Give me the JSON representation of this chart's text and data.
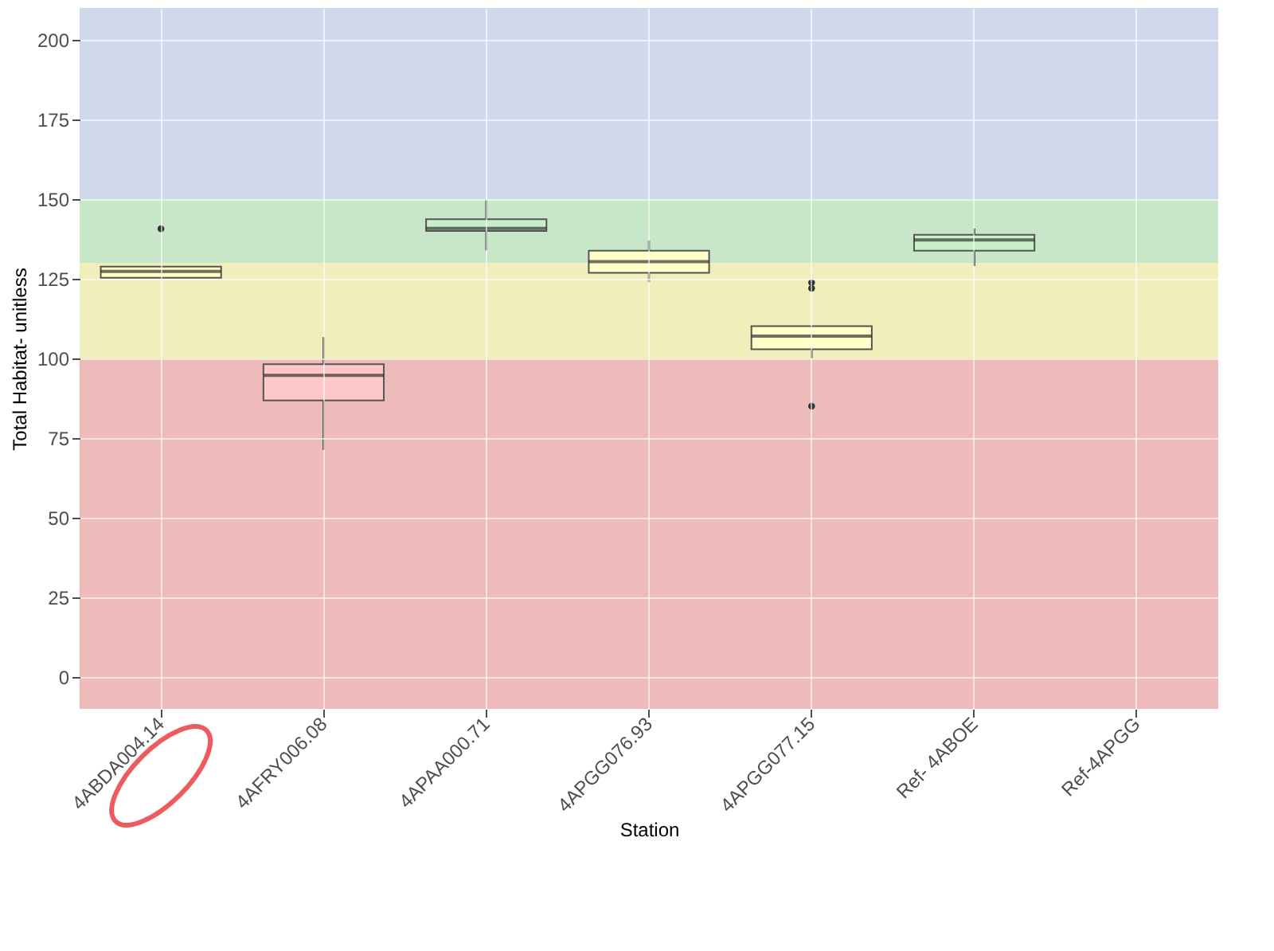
{
  "chart_data": {
    "type": "box",
    "xlabel": "Station",
    "ylabel": "Total Habitat- unitless",
    "categories": [
      "4ABDA004.14",
      "4AFRY006.08",
      "4APAA000.71",
      "4APGG076.93",
      "4APGG077.15",
      "Ref- 4ABOE",
      "Ref-4APGG"
    ],
    "boxes": [
      {
        "low": 125.3,
        "q1": 125.3,
        "median": 127.3,
        "q3": 128.8,
        "high": 128.8,
        "outliers": [
          140.7
        ]
      },
      {
        "low": 71.3,
        "q1": 86.8,
        "median": 94.7,
        "q3": 98.2,
        "high": 106.7
      },
      {
        "low": 133.9,
        "q1": 140.0,
        "median": 140.8,
        "q3": 143.7,
        "high": 149.9
      },
      {
        "low": 124.0,
        "q1": 126.9,
        "median": 130.4,
        "q3": 133.8,
        "high": 137.0
      },
      {
        "low": 100.1,
        "q1": 102.9,
        "median": 107.0,
        "q3": 110.1,
        "high": 110.1,
        "outliers": [
          123.8,
          122.0,
          85.0
        ]
      },
      {
        "low": 129.0,
        "q1": 133.8,
        "median": 137.2,
        "q3": 138.8,
        "high": 140.8
      },
      null
    ],
    "colors": [
      "#ffffc8",
      "#ffc8c8",
      "#c8f0c8",
      "#ffffc8",
      "#ffffc8",
      "#c8f0c8",
      null
    ],
    "ylim": [
      -10,
      210
    ],
    "yticks": [
      0,
      25,
      50,
      75,
      100,
      125,
      150,
      175,
      200
    ],
    "bands": [
      {
        "axis": "y",
        "from": -10,
        "to": 100,
        "color": "#eebbbb"
      },
      {
        "axis": "y",
        "from": 100,
        "to": 130,
        "color": "#f0eebb"
      },
      {
        "axis": "y",
        "from": 130,
        "to": 150,
        "color": "#c8e6c8"
      },
      {
        "axis": "y",
        "from": 150,
        "to": 210,
        "color": "#d0d9ec"
      }
    ],
    "grid": true
  }
}
